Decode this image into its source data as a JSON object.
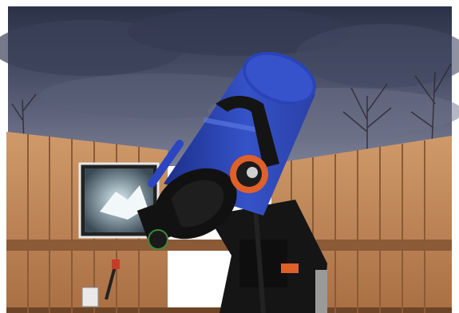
{
  "scene": {
    "subject": "telescope-in-observatory",
    "colors": {
      "sky_dark": "#2a3146",
      "sky_light": "#6f7690",
      "fence_wood": "#c2885a",
      "fence_shadow": "#8b5a37",
      "tube_blue": "#2c44b4",
      "tube_highlight": "#5f7ee6",
      "mount_black": "#161616",
      "accent_orange": "#e0602a",
      "frame_white": "#ffffff"
    }
  }
}
